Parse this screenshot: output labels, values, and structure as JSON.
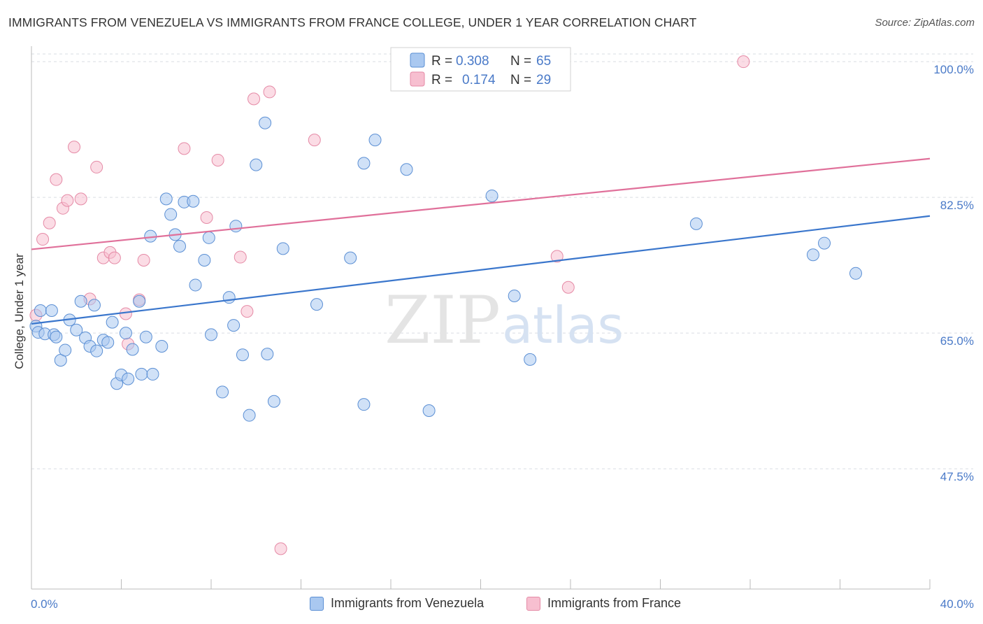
{
  "title": "IMMIGRANTS FROM VENEZUELA VS IMMIGRANTS FROM FRANCE COLLEGE, UNDER 1 YEAR CORRELATION CHART",
  "source": "Source: ZipAtlas.com",
  "watermark": {
    "zip": "ZIP",
    "atlas": "atlas"
  },
  "colors": {
    "blue_fill": "#a9c8f0",
    "blue_stroke": "#5b8fd4",
    "blue_line": "#3a76cc",
    "pink_fill": "#f7bfd0",
    "pink_stroke": "#e58aa6",
    "pink_line": "#e0709a",
    "tick_label": "#4a7ac8",
    "grid": "#d9dde3",
    "axis": "#bbbbbb"
  },
  "legend": {
    "r_label": "R =",
    "n_label": "N =",
    "rows": [
      {
        "series": "venezuela",
        "r": "0.308",
        "n": "65"
      },
      {
        "series": "france",
        "r": "0.174",
        "n": "29"
      }
    ]
  },
  "chart_data": {
    "type": "scatter",
    "title": "IMMIGRANTS FROM VENEZUELA VS IMMIGRANTS FROM FRANCE COLLEGE, UNDER 1 YEAR CORRELATION CHART",
    "xlabel": "",
    "ylabel": "College, Under 1 year",
    "xlim": [
      0,
      40
    ],
    "ylim": [
      32,
      102
    ],
    "x_tick_labels": [
      {
        "value": 0,
        "label": "0.0%"
      },
      {
        "value": 40,
        "label": "40.0%"
      }
    ],
    "x_minor_ticks": [
      4,
      8,
      12,
      16,
      20,
      24,
      28,
      32,
      36,
      40
    ],
    "y_ticks": [
      {
        "value": 100,
        "label": "100.0%"
      },
      {
        "value": 82.5,
        "label": "82.5%"
      },
      {
        "value": 65,
        "label": "65.0%"
      },
      {
        "value": 47.5,
        "label": "47.5%"
      }
    ],
    "grid": true,
    "legend_position": "top-center",
    "series": [
      {
        "name": "Immigrants from Venezuela",
        "key": "venezuela",
        "trend": {
          "x0": 0,
          "y0": 66.2,
          "x1": 40,
          "y1": 80.1
        },
        "points": [
          [
            0.2,
            65.9
          ],
          [
            0.3,
            65.1
          ],
          [
            0.4,
            67.9
          ],
          [
            0.6,
            64.9
          ],
          [
            0.9,
            67.9
          ],
          [
            1.0,
            64.8
          ],
          [
            1.1,
            64.5
          ],
          [
            1.3,
            61.5
          ],
          [
            1.5,
            62.8
          ],
          [
            1.7,
            66.7
          ],
          [
            2.0,
            65.4
          ],
          [
            2.2,
            69.1
          ],
          [
            2.4,
            64.4
          ],
          [
            2.6,
            63.3
          ],
          [
            2.8,
            68.6
          ],
          [
            2.9,
            62.7
          ],
          [
            3.2,
            64.1
          ],
          [
            3.4,
            63.8
          ],
          [
            3.6,
            66.4
          ],
          [
            3.8,
            58.5
          ],
          [
            4.0,
            59.6
          ],
          [
            4.2,
            65.0
          ],
          [
            4.3,
            59.1
          ],
          [
            4.5,
            62.9
          ],
          [
            4.8,
            69.1
          ],
          [
            4.9,
            59.7
          ],
          [
            5.1,
            64.5
          ],
          [
            5.3,
            77.5
          ],
          [
            5.4,
            59.7
          ],
          [
            5.8,
            63.3
          ],
          [
            6.0,
            82.3
          ],
          [
            6.2,
            80.3
          ],
          [
            6.4,
            77.7
          ],
          [
            6.6,
            76.2
          ],
          [
            6.8,
            81.9
          ],
          [
            7.2,
            82.0
          ],
          [
            7.3,
            71.2
          ],
          [
            7.7,
            74.4
          ],
          [
            7.9,
            77.3
          ],
          [
            8.0,
            64.8
          ],
          [
            8.5,
            57.4
          ],
          [
            8.8,
            69.6
          ],
          [
            9.0,
            66.0
          ],
          [
            9.1,
            78.8
          ],
          [
            9.4,
            62.2
          ],
          [
            9.7,
            54.4
          ],
          [
            10.0,
            86.7
          ],
          [
            10.4,
            92.1
          ],
          [
            10.5,
            62.3
          ],
          [
            10.8,
            56.2
          ],
          [
            11.2,
            75.9
          ],
          [
            12.7,
            68.7
          ],
          [
            14.2,
            74.7
          ],
          [
            14.8,
            55.8
          ],
          [
            14.8,
            86.9
          ],
          [
            15.3,
            89.9
          ],
          [
            16.7,
            86.1
          ],
          [
            17.7,
            55.0
          ],
          [
            20.5,
            82.7
          ],
          [
            21.5,
            69.8
          ],
          [
            22.2,
            61.6
          ],
          [
            29.6,
            79.1
          ],
          [
            34.8,
            75.1
          ],
          [
            35.3,
            76.6
          ],
          [
            36.7,
            72.7
          ]
        ]
      },
      {
        "name": "Immigrants from France",
        "key": "france",
        "trend": {
          "x0": 0,
          "y0": 75.8,
          "x1": 40,
          "y1": 87.5
        },
        "points": [
          [
            0.2,
            67.3
          ],
          [
            0.5,
            77.1
          ],
          [
            0.8,
            79.2
          ],
          [
            1.1,
            84.8
          ],
          [
            1.4,
            81.1
          ],
          [
            1.6,
            82.1
          ],
          [
            1.9,
            89.0
          ],
          [
            2.2,
            82.3
          ],
          [
            2.6,
            69.4
          ],
          [
            2.9,
            86.4
          ],
          [
            3.2,
            74.7
          ],
          [
            3.5,
            75.4
          ],
          [
            3.7,
            74.7
          ],
          [
            4.2,
            67.5
          ],
          [
            4.3,
            63.6
          ],
          [
            4.8,
            69.3
          ],
          [
            5.0,
            74.4
          ],
          [
            6.8,
            88.8
          ],
          [
            7.8,
            79.9
          ],
          [
            8.3,
            87.3
          ],
          [
            9.3,
            74.8
          ],
          [
            9.6,
            67.8
          ],
          [
            9.9,
            95.2
          ],
          [
            10.6,
            96.1
          ],
          [
            11.1,
            37.2
          ],
          [
            12.6,
            89.9
          ],
          [
            23.4,
            74.9
          ],
          [
            23.9,
            70.9
          ],
          [
            31.7,
            100.0
          ]
        ]
      }
    ]
  },
  "bottom_legend": [
    {
      "series": "venezuela",
      "label": "Immigrants from Venezuela"
    },
    {
      "series": "france",
      "label": "Immigrants from France"
    }
  ]
}
